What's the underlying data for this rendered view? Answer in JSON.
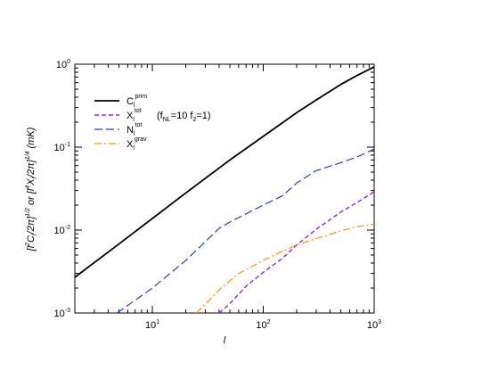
{
  "chart_data": {
    "type": "line",
    "scale": {
      "x": "log",
      "y": "log"
    },
    "xlim": [
      2,
      1000
    ],
    "ylim": [
      0.001,
      1
    ],
    "xticks": [
      {
        "value": 10,
        "base": "10",
        "exp": "1"
      },
      {
        "value": 100,
        "base": "10",
        "exp": "2"
      },
      {
        "value": 1000,
        "base": "10",
        "exp": "3"
      }
    ],
    "yticks": [
      {
        "value": 0.001,
        "base": "10",
        "exp": "-3"
      },
      {
        "value": 0.01,
        "base": "10",
        "exp": "-2"
      },
      {
        "value": 0.1,
        "base": "10",
        "exp": "-1"
      },
      {
        "value": 1,
        "base": "10",
        "exp": "0"
      }
    ],
    "xlabel": "l",
    "ylabel": {
      "p1": "[l",
      "p1_sup": "2",
      "p2": "C",
      "p2_sub": "l",
      "p3": "/2π]",
      "p3_sup": "1/2",
      "p4": " or [l",
      "p4_sup": "4",
      "p5": "X",
      "p5_sub": "l",
      "p6": "/2π]",
      "p6_sup": "1/4",
      "p7": " (mK)"
    },
    "legend_position": "top-left",
    "series": [
      {
        "name": "C",
        "sub": "l",
        "sup": "prim",
        "extra": "",
        "color": "#000000",
        "dash": "",
        "width": 1.8,
        "points": [
          [
            2,
            0.0027
          ],
          [
            5,
            0.0068
          ],
          [
            10,
            0.0138
          ],
          [
            20,
            0.028
          ],
          [
            50,
            0.07
          ],
          [
            100,
            0.135
          ],
          [
            200,
            0.26
          ],
          [
            300,
            0.37
          ],
          [
            500,
            0.57
          ],
          [
            700,
            0.73
          ],
          [
            1000,
            0.93
          ]
        ]
      },
      {
        "name": "X",
        "sub": "l",
        "sup": "tot",
        "extra": {
          "p1": "(f",
          "p1_sub": "NL",
          "p2": "=10 f",
          "p2_sub": "2",
          "p3": "=1)"
        },
        "color": "#8a2be2",
        "dash": "5,3",
        "width": 1.4,
        "points": [
          [
            40,
            0.001
          ],
          [
            50,
            0.0013
          ],
          [
            70,
            0.0021
          ],
          [
            100,
            0.0031
          ],
          [
            150,
            0.0046
          ],
          [
            200,
            0.0066
          ],
          [
            300,
            0.0102
          ],
          [
            500,
            0.0165
          ],
          [
            700,
            0.0215
          ],
          [
            1000,
            0.029
          ]
        ]
      },
      {
        "name": "N",
        "sub": "l",
        "sup": "tot",
        "extra": "",
        "color": "#1f3fd6",
        "dash": "9,4",
        "width": 1.2,
        "points": [
          [
            4.8,
            0.001
          ],
          [
            10,
            0.002
          ],
          [
            20,
            0.0043
          ],
          [
            40,
            0.0105
          ],
          [
            50,
            0.0125
          ],
          [
            100,
            0.02
          ],
          [
            150,
            0.026
          ],
          [
            200,
            0.037
          ],
          [
            300,
            0.052
          ],
          [
            500,
            0.065
          ],
          [
            700,
            0.076
          ],
          [
            1000,
            0.095
          ]
        ]
      },
      {
        "name": "X",
        "sub": "l",
        "sup": "grav",
        "extra": "",
        "color": "#ff9200",
        "dash": "8,3,2,3",
        "width": 1.2,
        "points": [
          [
            25,
            0.001
          ],
          [
            40,
            0.0019
          ],
          [
            60,
            0.003
          ],
          [
            100,
            0.0043
          ],
          [
            150,
            0.0056
          ],
          [
            200,
            0.0066
          ],
          [
            300,
            0.0079
          ],
          [
            500,
            0.0098
          ],
          [
            700,
            0.011
          ],
          [
            1000,
            0.0118
          ]
        ]
      }
    ]
  }
}
